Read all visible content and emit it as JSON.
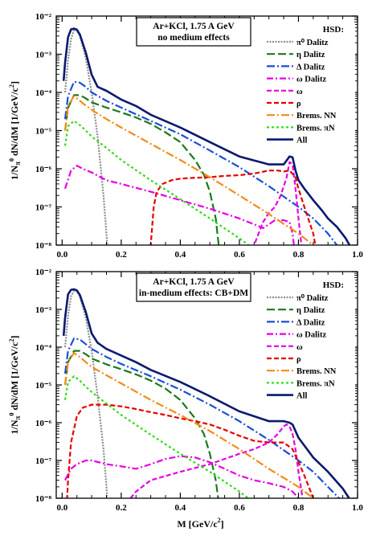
{
  "chart_data": [
    {
      "type": "line",
      "title_lines": [
        "Ar+KCl,  1.75 A GeV",
        "no medium effects"
      ],
      "xlabel": "",
      "ylabel": "1/N_{π⁰} dN/dM  [1/GeV/c²]",
      "ylabel_parts": {
        "main": "1/N",
        "sub": "π",
        "sup": "0",
        "rest": " dN/dM  [1/GeV/c",
        "sup2": "2",
        "end": "]"
      },
      "xlim": [
        -0.02,
        1.0
      ],
      "ylim_log10": [
        -8,
        -2
      ],
      "x_ticks": [
        "0.0",
        "0.2",
        "0.4",
        "0.6",
        "0.8",
        "1.0"
      ],
      "y_ticks": [
        "10⁻⁸",
        "10⁻⁷",
        "10⁻⁶",
        "10⁻⁵",
        "10⁻⁴",
        "10⁻³",
        "10⁻²"
      ],
      "legend_title": "HSD:",
      "legend_position": "upper-right",
      "series": [
        {
          "name": "π⁰ Dalitz",
          "color": "#8c8c8c",
          "dash": "2,1.5",
          "width": 2.2,
          "x": [
            0.01,
            0.02,
            0.03,
            0.04,
            0.05,
            0.06,
            0.08,
            0.1,
            0.12,
            0.14,
            0.15,
            0.16
          ],
          "y": [
            0.0001,
            0.0007,
            0.0025,
            0.0043,
            0.0042,
            0.003,
            0.0008,
            0.0001,
            7e-06,
            2e-07,
            2e-08,
            1e-09
          ]
        },
        {
          "name": "η Dalitz",
          "color": "#1a7a1a",
          "dash": "10,4",
          "width": 2.2,
          "x": [
            0.01,
            0.02,
            0.04,
            0.06,
            0.08,
            0.1,
            0.15,
            0.2,
            0.25,
            0.3,
            0.35,
            0.4,
            0.45,
            0.48,
            0.5,
            0.52,
            0.53,
            0.54
          ],
          "y": [
            1e-05,
            4e-05,
            8.5e-05,
            8.5e-05,
            7e-05,
            5.5e-05,
            4e-05,
            3e-05,
            2.2e-05,
            1.5e-05,
            9e-06,
            5e-06,
            1.7e-06,
            7e-07,
            2.5e-07,
            5e-08,
            1e-08,
            1e-09
          ]
        },
        {
          "name": "Δ Dalitz",
          "color": "#1a4fd6",
          "dash": "10,3,2,3",
          "width": 2.2,
          "x": [
            0.01,
            0.02,
            0.04,
            0.06,
            0.08,
            0.1,
            0.15,
            0.2,
            0.3,
            0.4,
            0.5,
            0.6,
            0.7,
            0.8,
            0.85,
            0.9,
            0.93
          ],
          "y": [
            2e-05,
            8e-05,
            0.00019,
            0.00018,
            0.00014,
            0.0001,
            6e-05,
            4e-05,
            1.8e-05,
            8e-06,
            3e-06,
            1.1e-06,
            3.5e-07,
            1e-07,
            5e-08,
            2e-08,
            1e-08
          ]
        },
        {
          "name": "ω Dalitz",
          "color": "#e600e6",
          "dash": "8,3,2,3",
          "width": 2.2,
          "x": [
            0.01,
            0.03,
            0.05,
            0.07,
            0.1,
            0.15,
            0.2,
            0.3,
            0.4,
            0.5,
            0.6,
            0.65,
            0.68,
            0.7,
            0.72,
            0.75,
            0.77,
            0.78,
            0.8
          ],
          "y": [
            3e-07,
            9e-07,
            1.2e-06,
            1e-06,
            8e-07,
            5e-07,
            4e-07,
            2.5e-07,
            1.5e-07,
            9e-08,
            5e-08,
            3.5e-08,
            2.8e-08,
            3.5e-08,
            4.5e-08,
            4.5e-08,
            4e-08,
            2e-08,
            1e-09
          ]
        },
        {
          "name": "ω",
          "color": "#e600e6",
          "dash": "6,3",
          "width": 2.2,
          "x": [
            0.6,
            0.65,
            0.68,
            0.7,
            0.72,
            0.74,
            0.76,
            0.77,
            0.78,
            0.79,
            0.8,
            0.81,
            0.82
          ],
          "y": [
            1e-09,
            1e-08,
            4e-08,
            7e-08,
            1e-07,
            2e-07,
            6e-07,
            1.5e-06,
            1.3e-06,
            3e-07,
            5e-08,
            1e-08,
            1e-09
          ]
        },
        {
          "name": "ρ",
          "color": "#e60000",
          "dash": "6,3",
          "width": 2.2,
          "x": [
            0.29,
            0.3,
            0.31,
            0.32,
            0.34,
            0.37,
            0.4,
            0.45,
            0.5,
            0.55,
            0.6,
            0.65,
            0.7,
            0.73,
            0.75,
            0.77,
            0.79,
            0.8,
            0.82,
            0.85,
            0.88
          ],
          "y": [
            1e-09,
            1e-08,
            1e-07,
            2.5e-07,
            4e-07,
            5e-07,
            5.5e-07,
            5.8e-07,
            6e-07,
            6.5e-07,
            6.8e-07,
            7.5e-07,
            9e-07,
            9e-07,
            8.5e-07,
            9e-07,
            6e-07,
            3e-07,
            1e-07,
            2e-08,
            1e-09
          ]
        },
        {
          "name": "Brems. NN",
          "color": "#f28c1a",
          "dash": "10,3,2,3",
          "width": 2.2,
          "x": [
            0.01,
            0.02,
            0.04,
            0.06,
            0.08,
            0.1,
            0.15,
            0.2,
            0.3,
            0.4,
            0.5,
            0.6,
            0.7,
            0.8,
            0.85,
            0.88
          ],
          "y": [
            1e-05,
            4.5e-05,
            8e-05,
            6e-05,
            4.5e-05,
            3.5e-05,
            2e-05,
            1.2e-05,
            4.5e-06,
            1.7e-06,
            6e-07,
            2e-07,
            6.5e-08,
            2e-08,
            1e-08,
            4e-09
          ]
        },
        {
          "name": "Brems. πN",
          "color": "#33dd1a",
          "dash": "3,3",
          "width": 2.2,
          "x": [
            0.01,
            0.02,
            0.04,
            0.06,
            0.08,
            0.1,
            0.15,
            0.2,
            0.3,
            0.4,
            0.5,
            0.6,
            0.7,
            0.73
          ],
          "y": [
            4e-06,
            1.3e-05,
            1.8e-05,
            1.4e-05,
            1e-05,
            7e-06,
            3.5e-06,
            1.7e-06,
            5e-07,
            1.6e-07,
            5e-08,
            1.5e-08,
            4e-09,
            1e-09
          ]
        },
        {
          "name": "All",
          "color": "#0a1a6e",
          "dash": "",
          "width": 2.6,
          "x": [
            0.005,
            0.01,
            0.02,
            0.03,
            0.04,
            0.05,
            0.06,
            0.08,
            0.1,
            0.12,
            0.15,
            0.2,
            0.25,
            0.3,
            0.4,
            0.5,
            0.6,
            0.7,
            0.75,
            0.77,
            0.78,
            0.79,
            0.8,
            0.82,
            0.85,
            0.88,
            0.9,
            0.93,
            0.96,
            0.98
          ],
          "y": [
            0.0002,
            0.0006,
            0.0028,
            0.0045,
            0.0047,
            0.0044,
            0.0033,
            0.0011,
            0.00029,
            0.00014,
            0.00011,
            6.5e-05,
            4.4e-05,
            2.6e-05,
            1.2e-05,
            5e-06,
            2.1e-06,
            1.3e-06,
            1.3e-06,
            2.1e-06,
            2e-06,
            9e-07,
            5e-07,
            3e-07,
            1.5e-07,
            8e-08,
            5e-08,
            3e-08,
            1.5e-08,
            8e-09
          ]
        }
      ]
    },
    {
      "type": "line",
      "title_lines": [
        "Ar+KCl,  1.75 A GeV",
        "in-medium effects: CB+DM"
      ],
      "xlabel": "M [GeV/c²]",
      "xlabel_parts": {
        "main": "M [GeV/c",
        "sup": "2",
        "end": "]"
      },
      "ylabel": "1/N_{π⁰} dN/dM  [1/GeV/c²]",
      "ylabel_parts": {
        "main": "1/N",
        "sub": "π",
        "sup": "0",
        "rest": " dN/dM  [1/GeV/c",
        "sup2": "2",
        "end": "]"
      },
      "xlim": [
        -0.02,
        1.0
      ],
      "ylim_log10": [
        -8,
        -2
      ],
      "x_ticks": [
        "0.0",
        "0.2",
        "0.4",
        "0.6",
        "0.8",
        "1.0"
      ],
      "y_ticks": [
        "10⁻⁸",
        "10⁻⁷",
        "10⁻⁶",
        "10⁻⁵",
        "10⁻⁴",
        "10⁻³",
        "10⁻²"
      ],
      "legend_title": "HSD:",
      "legend_position": "upper-right",
      "series": [
        {
          "name": "π⁰ Dalitz",
          "color": "#8c8c8c",
          "dash": "2,1.5",
          "width": 2.2,
          "x": [
            0.01,
            0.02,
            0.03,
            0.04,
            0.05,
            0.06,
            0.08,
            0.1,
            0.12,
            0.14,
            0.15,
            0.16
          ],
          "y": [
            0.0001,
            0.0007,
            0.0022,
            0.0031,
            0.003,
            0.0022,
            0.0006,
            8e-05,
            5e-06,
            2e-07,
            2e-08,
            1e-09
          ]
        },
        {
          "name": "η Dalitz",
          "color": "#1a7a1a",
          "dash": "10,4",
          "width": 2.2,
          "x": [
            0.01,
            0.02,
            0.04,
            0.06,
            0.08,
            0.1,
            0.15,
            0.2,
            0.25,
            0.3,
            0.35,
            0.4,
            0.45,
            0.48,
            0.5,
            0.52,
            0.53,
            0.54
          ],
          "y": [
            1e-05,
            4e-05,
            8e-05,
            8e-05,
            6.5e-05,
            5e-05,
            3.5e-05,
            2.6e-05,
            1.9e-05,
            1.3e-05,
            8e-06,
            4e-06,
            1.3e-06,
            5e-07,
            1.5e-07,
            3e-08,
            8e-09,
            1e-09
          ]
        },
        {
          "name": "Δ Dalitz",
          "color": "#1a4fd6",
          "dash": "10,3,2,3",
          "width": 2.2,
          "x": [
            0.01,
            0.02,
            0.04,
            0.06,
            0.08,
            0.1,
            0.15,
            0.2,
            0.3,
            0.4,
            0.5,
            0.6,
            0.7,
            0.8,
            0.85,
            0.9,
            0.95
          ],
          "y": [
            2e-05,
            8e-05,
            0.00017,
            0.00016,
            0.00012,
            9e-05,
            5.5e-05,
            3.6e-05,
            1.7e-05,
            7.5e-06,
            3e-06,
            1.1e-06,
            3.5e-07,
            1e-07,
            5e-08,
            2e-08,
            8e-09
          ]
        },
        {
          "name": "ω Dalitz",
          "color": "#e600e6",
          "dash": "8,3,2,3",
          "width": 2.2,
          "x": [
            0.01,
            0.03,
            0.05,
            0.08,
            0.1,
            0.15,
            0.2,
            0.25,
            0.3,
            0.35,
            0.4,
            0.45,
            0.5,
            0.55,
            0.6,
            0.65,
            0.7,
            0.75,
            0.78,
            0.8,
            0.82
          ],
          "y": [
            3e-08,
            6e-08,
            8e-08,
            1e-07,
            1e-07,
            8e-08,
            7e-08,
            6e-08,
            8e-08,
            1.1e-07,
            1.3e-07,
            1.2e-07,
            9e-08,
            6e-08,
            4e-08,
            3e-08,
            2.5e-08,
            2e-08,
            1.5e-08,
            1e-08,
            5e-09
          ]
        },
        {
          "name": "ω",
          "color": "#e600e6",
          "dash": "6,3",
          "width": 2.2,
          "x": [
            0.2,
            0.25,
            0.3,
            0.4,
            0.5,
            0.55,
            0.6,
            0.65,
            0.7,
            0.73,
            0.75,
            0.76,
            0.77,
            0.78,
            0.79,
            0.8,
            0.82
          ],
          "y": [
            5e-09,
            1.5e-08,
            3e-08,
            5e-08,
            8e-08,
            1.1e-07,
            1.5e-07,
            2e-07,
            3e-07,
            5e-07,
            8e-07,
            9e-07,
            8e-07,
            5e-07,
            2e-07,
            5e-08,
            5e-09
          ]
        },
        {
          "name": "ρ",
          "color": "#e60000",
          "dash": "6,3",
          "width": 2.2,
          "x": [
            0.01,
            0.02,
            0.03,
            0.05,
            0.07,
            0.1,
            0.15,
            0.2,
            0.25,
            0.3,
            0.35,
            0.4,
            0.45,
            0.5,
            0.55,
            0.6,
            0.65,
            0.7,
            0.75,
            0.78,
            0.8,
            0.82,
            0.85,
            0.88
          ],
          "y": [
            1e-09,
            3e-08,
            3e-07,
            1.5e-06,
            2.5e-06,
            3e-06,
            3e-06,
            2.7e-06,
            2.3e-06,
            1.9e-06,
            1.6e-06,
            1.3e-06,
            1.1e-06,
            9e-07,
            6.5e-07,
            4.5e-07,
            3.3e-07,
            3e-07,
            3e-07,
            2e-07,
            9e-08,
            4e-08,
            1e-08,
            2e-09
          ]
        },
        {
          "name": "Brems. NN",
          "color": "#f28c1a",
          "dash": "10,3,2,3",
          "width": 2.2,
          "x": [
            0.01,
            0.02,
            0.04,
            0.06,
            0.08,
            0.1,
            0.15,
            0.2,
            0.3,
            0.4,
            0.5,
            0.6,
            0.7,
            0.8,
            0.85,
            0.88
          ],
          "y": [
            1e-05,
            4e-05,
            7e-05,
            5.5e-05,
            4e-05,
            3e-05,
            1.8e-05,
            1.1e-05,
            4e-06,
            1.6e-06,
            6e-07,
            2e-07,
            6e-08,
            2e-08,
            1e-08,
            4e-09
          ]
        },
        {
          "name": "Brems. πN",
          "color": "#33dd1a",
          "dash": "3,3",
          "width": 2.2,
          "x": [
            0.01,
            0.02,
            0.04,
            0.06,
            0.08,
            0.1,
            0.15,
            0.2,
            0.3,
            0.4,
            0.5,
            0.6,
            0.7,
            0.73
          ],
          "y": [
            4e-06,
            1.2e-05,
            1.7e-05,
            1.3e-05,
            9e-06,
            6.5e-06,
            3.2e-06,
            1.6e-06,
            4.8e-07,
            1.5e-07,
            5e-08,
            1.5e-08,
            4e-09,
            1e-09
          ]
        },
        {
          "name": "All",
          "color": "#0a1a6e",
          "dash": "",
          "width": 2.6,
          "x": [
            0.005,
            0.01,
            0.02,
            0.03,
            0.04,
            0.05,
            0.06,
            0.08,
            0.1,
            0.12,
            0.15,
            0.2,
            0.25,
            0.3,
            0.4,
            0.5,
            0.6,
            0.7,
            0.75,
            0.77,
            0.78,
            0.8,
            0.85,
            0.9,
            0.95,
            0.98
          ],
          "y": [
            0.0002,
            0.0006,
            0.0025,
            0.0033,
            0.0034,
            0.0032,
            0.0024,
            0.00085,
            0.00023,
            0.00013,
            9e-05,
            6e-05,
            4e-05,
            2.5e-05,
            1.2e-05,
            5e-06,
            2e-06,
            1.1e-06,
            1.1e-06,
            1e-06,
            9e-07,
            4e-07,
            1.2e-07,
            5e-08,
            1.8e-08,
            8e-09
          ]
        }
      ]
    }
  ]
}
